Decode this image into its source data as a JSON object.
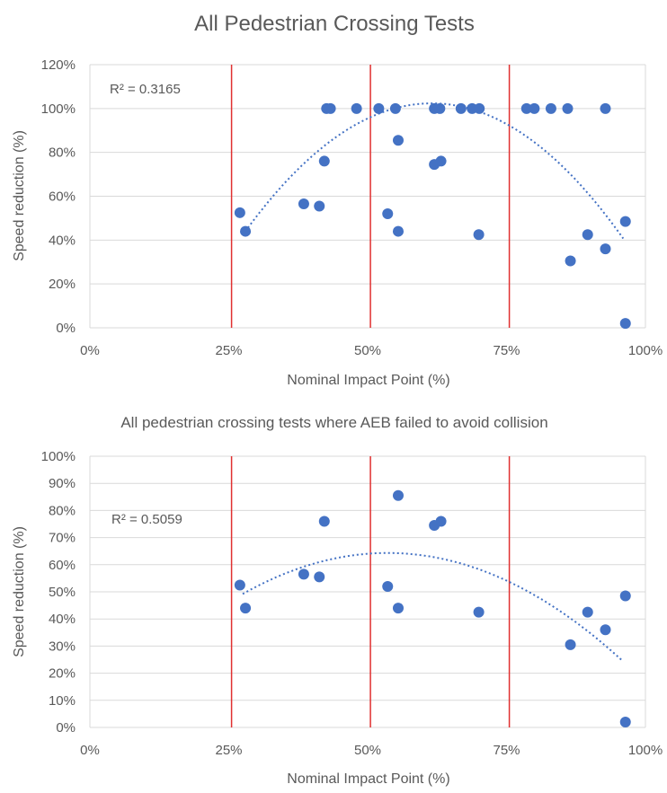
{
  "chart_data": [
    {
      "type": "scatter",
      "title": "All Pedestrian Crossing Tests",
      "xlabel": "Nominal Impact Point (%)",
      "ylabel": "Speed reduction (%)",
      "xlim": [
        0,
        100
      ],
      "ylim": [
        0,
        120
      ],
      "x_ticks": [
        0,
        25,
        50,
        75,
        100
      ],
      "x_tick_labels": [
        "0%",
        "25%",
        "50%",
        "75%",
        "100%"
      ],
      "y_ticks": [
        0,
        20,
        40,
        60,
        80,
        100,
        120
      ],
      "y_tick_labels": [
        "0%",
        "20%",
        "40%",
        "60%",
        "80%",
        "100%",
        "120%"
      ],
      "grid": "horizontal",
      "legend": "none",
      "r2_label": "R² = 0.3165",
      "trendline": {
        "type": "polynomial-2",
        "style": "dotted",
        "x_range": [
          27.5,
          96
        ],
        "coefficients": [
          -94.06,
          6.3844,
          -0.05188
        ]
      },
      "reference_lines_x": [
        25.5,
        50.5,
        75.5
      ],
      "points": [
        {
          "x": 27,
          "y": 52.5
        },
        {
          "x": 28,
          "y": 44
        },
        {
          "x": 38.5,
          "y": 56.5
        },
        {
          "x": 41.3,
          "y": 55.5
        },
        {
          "x": 42.2,
          "y": 76
        },
        {
          "x": 42.6,
          "y": 100
        },
        {
          "x": 43.3,
          "y": 100
        },
        {
          "x": 48,
          "y": 100
        },
        {
          "x": 52,
          "y": 100
        },
        {
          "x": 53.6,
          "y": 52
        },
        {
          "x": 55,
          "y": 100
        },
        {
          "x": 55.5,
          "y": 85.5
        },
        {
          "x": 55.5,
          "y": 44
        },
        {
          "x": 62,
          "y": 100
        },
        {
          "x": 62,
          "y": 74.5
        },
        {
          "x": 63,
          "y": 100
        },
        {
          "x": 63.2,
          "y": 76
        },
        {
          "x": 66.8,
          "y": 100
        },
        {
          "x": 68.8,
          "y": 100
        },
        {
          "x": 70.1,
          "y": 100
        },
        {
          "x": 70,
          "y": 42.5
        },
        {
          "x": 78.6,
          "y": 100
        },
        {
          "x": 80,
          "y": 100
        },
        {
          "x": 83,
          "y": 100
        },
        {
          "x": 86,
          "y": 100
        },
        {
          "x": 86.5,
          "y": 30.5
        },
        {
          "x": 89.6,
          "y": 42.5
        },
        {
          "x": 92.8,
          "y": 100
        },
        {
          "x": 92.8,
          "y": 36
        },
        {
          "x": 96.4,
          "y": 48.5
        },
        {
          "x": 96.4,
          "y": 2
        }
      ]
    },
    {
      "type": "scatter",
      "title": "All pedestrian crossing tests where AEB failed to avoid collision",
      "xlabel": "Nominal Impact Point (%)",
      "ylabel": "Speed reduction (%)",
      "xlim": [
        0,
        100
      ],
      "ylim": [
        0,
        100
      ],
      "x_ticks": [
        0,
        25,
        50,
        75,
        100
      ],
      "x_tick_labels": [
        "0%",
        "25%",
        "50%",
        "75%",
        "100%"
      ],
      "y_ticks": [
        0,
        10,
        20,
        30,
        40,
        50,
        60,
        70,
        80,
        90,
        100
      ],
      "y_tick_labels": [
        "0%",
        "10%",
        "20%",
        "30%",
        "40%",
        "50%",
        "60%",
        "70%",
        "80%",
        "90%",
        "100%"
      ],
      "grid": "horizontal",
      "legend": "none",
      "r2_label": "R² = 0.5059",
      "trendline": {
        "type": "polynomial-2",
        "style": "dotted",
        "x_range": [
          27.5,
          96
        ],
        "coefficients": [
          0.48,
          2.3826,
          -0.02223
        ]
      },
      "reference_lines_x": [
        25.5,
        50.5,
        75.5
      ],
      "points": [
        {
          "x": 27,
          "y": 52.5
        },
        {
          "x": 28,
          "y": 44
        },
        {
          "x": 38.5,
          "y": 56.5
        },
        {
          "x": 41.3,
          "y": 55.5
        },
        {
          "x": 42.2,
          "y": 76
        },
        {
          "x": 53.6,
          "y": 52
        },
        {
          "x": 55.5,
          "y": 85.5
        },
        {
          "x": 55.5,
          "y": 44
        },
        {
          "x": 62,
          "y": 74.5
        },
        {
          "x": 63.2,
          "y": 76
        },
        {
          "x": 70,
          "y": 42.5
        },
        {
          "x": 86.5,
          "y": 30.5
        },
        {
          "x": 89.6,
          "y": 42.5
        },
        {
          "x": 92.8,
          "y": 36
        },
        {
          "x": 96.4,
          "y": 48.5
        },
        {
          "x": 96.4,
          "y": 2
        }
      ]
    }
  ],
  "colors": {
    "marker": "#4472C4",
    "trendline": "#4472C4",
    "reference_line": "#E03030",
    "gridline": "#D9D9D9",
    "text": "#595959"
  }
}
